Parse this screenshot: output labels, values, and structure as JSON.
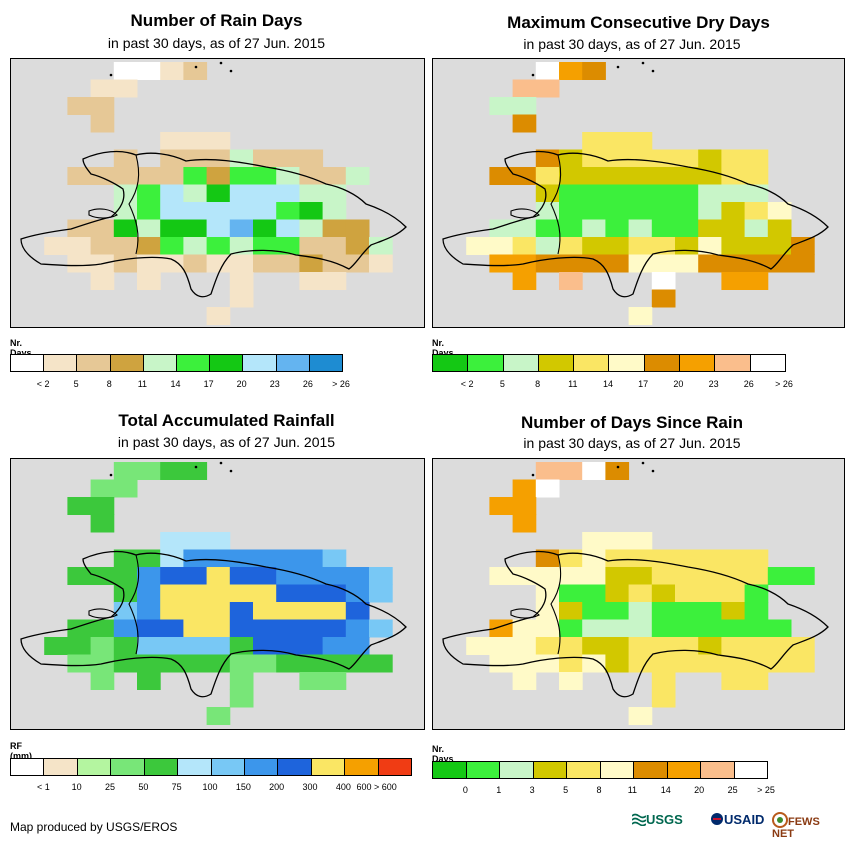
{
  "panels": [
    {
      "id": "rain-days",
      "title": "Number of Rain Days",
      "subtitle": "in past 30 days, as of 27 Jun. 2015",
      "legend_title": "Nr. Days",
      "legend_colors": [
        "#ffffff",
        "#f5e4c8",
        "#e6c896",
        "#cfa33f",
        "#c8f5c8",
        "#3cf03c",
        "#14c814",
        "#b4e6fa",
        "#64b4f0",
        "#1e8cd2"
      ],
      "legend_labels": [
        "< 2",
        "5",
        "8",
        "11",
        "14",
        "17",
        "20",
        "23",
        "26",
        "> 26"
      ],
      "grid": [
        "....ww12.........",
        "...11............",
        "..22.............",
        "...2.............",
        "......111........",
        "....2.2224222....",
        "..2222253554224..",
        "....4574677744...",
        "....4577777564...",
        "..2264667867433..",
        ".112235454552234.",
        "..11211211223221.",
        "...1.1...1..11...",
        ".........1.......",
        "........1........"
      ]
    },
    {
      "id": "max-dry-days",
      "title": "Maximum Consecutive Dry Days",
      "subtitle": "in past 30 days, as of 27 Jun. 2015",
      "legend_title": "Nr. Days",
      "legend_colors": [
        "#14c814",
        "#3cf03c",
        "#c8f5c8",
        "#d2c800",
        "#fae664",
        "#fffac8",
        "#dc8c00",
        "#f5a000",
        "#fabe8c",
        "#ffffff"
      ],
      "legend_labels": [
        "< 2",
        "5",
        "8",
        "11",
        "14",
        "17",
        "20",
        "23",
        "26",
        "> 26"
      ],
      "grid": [
        "....w7o..........",
        "...88............",
        "..22.............",
        "...6.............",
        "......444........",
        "....6344444344...",
        "..664333333344...",
        "....3111111222...",
        "....21111112345..",
        "..2211212113323..",
        ".554243344353336.",
        "..77666655566666.",
        "...7.8...9..77...",
        ".........6.......",
        "........5........"
      ]
    },
    {
      "id": "total-rainfall",
      "title": "Total Accumulated Rainfall",
      "subtitle": "in past 30 days, as of 27 Jun. 2015",
      "legend_title": "RF (mm)",
      "legend_colors": [
        "#ffffff",
        "#f5e4c8",
        "#b4f5a0",
        "#78e678",
        "#3cc83c",
        "#b4e6fa",
        "#78c8f5",
        "#3c96eb",
        "#1e64dc",
        "#fae664",
        "#f5a000",
        "#f03c14"
      ],
      "legend_labels": [
        "< 1",
        "10",
        "25",
        "50",
        "75",
        "100",
        "150",
        "200",
        "300",
        "400",
        "600 > 600"
      ],
      "grid": [
        "....3344.........",
        "...33............",
        "..44.............",
        "...4.............",
        "......555........",
        "....4457777776...",
        "..44478898877776.",
        "....4799a9988876.",
        "....67aa9899998..",
        "..44788a98888876.",
        ".44346666488877..",
        "..33444443344444.",
        "...3.4...3..33...",
        ".........3.......",
        "........3........"
      ]
    },
    {
      "id": "days-since-rain",
      "title": "Number of Days Since Rain",
      "subtitle": "in past 30 days, as of 27 Jun. 2015",
      "legend_title": "Nr. Days",
      "legend_colors": [
        "#14c814",
        "#3cf03c",
        "#c8f5c8",
        "#d2c800",
        "#fae664",
        "#fffac8",
        "#dc8c00",
        "#f5a000",
        "#fabe8c",
        "#ffffff"
      ],
      "legend_labels": [
        "0",
        "1",
        "3",
        "5",
        "8",
        "11",
        "14",
        "20",
        "25",
        "> 25"
      ],
      "grid": [
        "....889o.........",
        "...79............",
        "..77.............",
        "...7.............",
        "......555........",
        "....6454444444...",
        "..55555334444411.",
        "....5113434441...",
        "....5311211131...",
        "..7551222111111..",
        ".555443344434444.",
        "..55545344444444.",
        "...5.5...4..44...",
        ".........4.......",
        "........5........"
      ]
    }
  ],
  "footer": {
    "credit": "Map produced by USGS/EROS"
  },
  "logos": {
    "usgs": "USGS",
    "usaid": "USAID",
    "fews": "FEWS NET"
  }
}
